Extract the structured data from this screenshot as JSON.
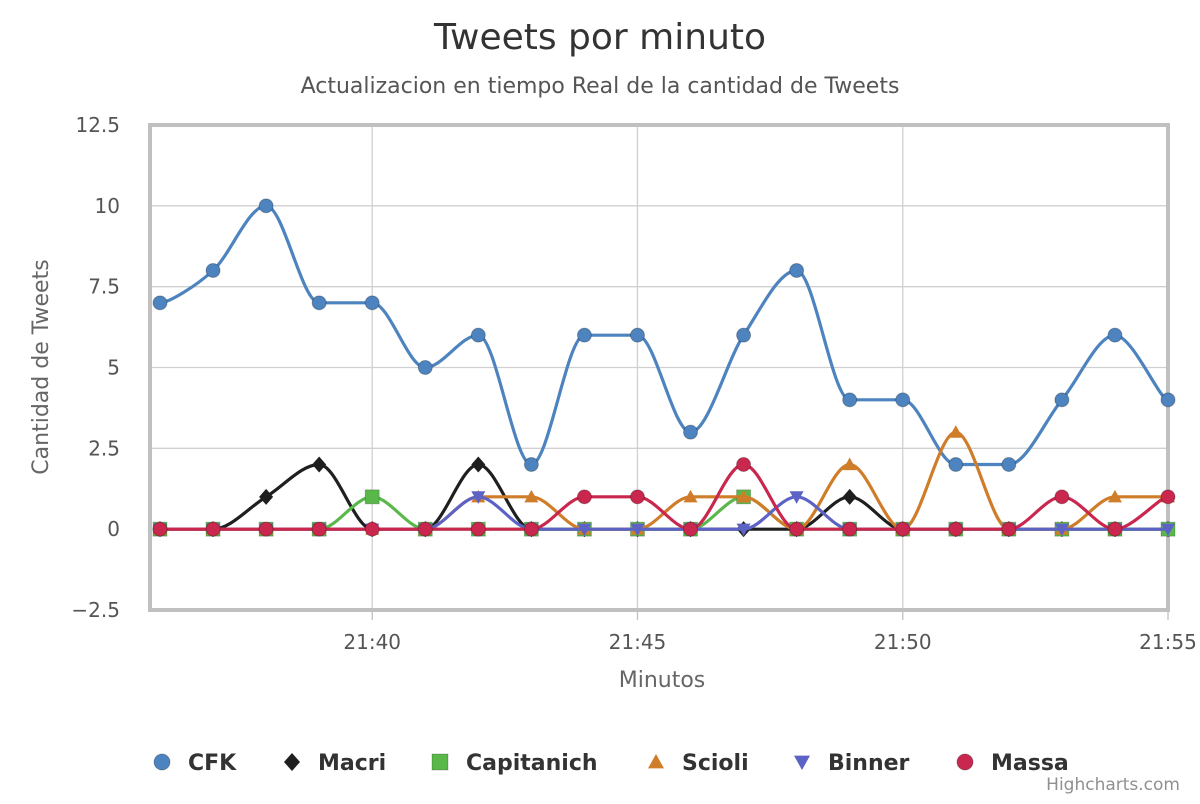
{
  "chart_data": {
    "type": "line",
    "title": "Tweets por minuto",
    "subtitle": "Actualizacion en tiempo Real de la cantidad de Tweets",
    "xlabel": "Minutos",
    "ylabel": "Cantidad de Tweets",
    "x": [
      "21:36",
      "21:37",
      "21:38",
      "21:39",
      "21:40",
      "21:41",
      "21:42",
      "21:43",
      "21:44",
      "21:45",
      "21:46",
      "21:47",
      "21:48",
      "21:49",
      "21:50",
      "21:51",
      "21:52",
      "21:53",
      "21:54",
      "21:55"
    ],
    "x_ticks": [
      "21:40",
      "21:45",
      "21:50",
      "21:55"
    ],
    "ylim": [
      -2.5,
      12.5
    ],
    "y_ticks": [
      "−2.5",
      "0",
      "2.5",
      "5",
      "7.5",
      "10",
      "12.5"
    ],
    "grid": true,
    "legend_placement": "bottom",
    "series": [
      {
        "name": "CFK",
        "color": "#4d83be",
        "marker": "circle",
        "values": [
          7,
          8,
          10,
          7,
          7,
          5,
          6,
          2,
          6,
          6,
          3,
          6,
          8,
          4,
          4,
          2,
          2,
          4,
          6,
          4
        ]
      },
      {
        "name": "Macri",
        "color": "#1f1f1f",
        "marker": "diamond",
        "values": [
          0,
          0,
          1,
          2,
          0,
          0,
          2,
          0,
          0,
          0,
          0,
          0,
          0,
          1,
          0,
          0,
          0,
          0,
          0,
          0
        ]
      },
      {
        "name": "Capitanich",
        "color": "#5ab84a",
        "marker": "square",
        "values": [
          0,
          0,
          0,
          0,
          1,
          0,
          0,
          0,
          0,
          0,
          0,
          1,
          0,
          0,
          0,
          0,
          0,
          0,
          0,
          0
        ]
      },
      {
        "name": "Scioli",
        "color": "#d07d2a",
        "marker": "triangle",
        "values": [
          0,
          0,
          0,
          0,
          0,
          0,
          1,
          1,
          0,
          0,
          1,
          1,
          0,
          2,
          0,
          3,
          0,
          0,
          1,
          1
        ]
      },
      {
        "name": "Binner",
        "color": "#5d62c5",
        "marker": "triangle-down",
        "values": [
          0,
          0,
          0,
          0,
          0,
          0,
          1,
          0,
          0,
          0,
          0,
          0,
          1,
          0,
          0,
          0,
          0,
          0,
          0,
          0
        ]
      },
      {
        "name": "Massa",
        "color": "#c9274e",
        "marker": "circle",
        "values": [
          0,
          0,
          0,
          0,
          0,
          0,
          0,
          0,
          1,
          1,
          0,
          2,
          0,
          0,
          0,
          0,
          0,
          1,
          0,
          1
        ]
      }
    ]
  },
  "credits": "Highcharts.com"
}
